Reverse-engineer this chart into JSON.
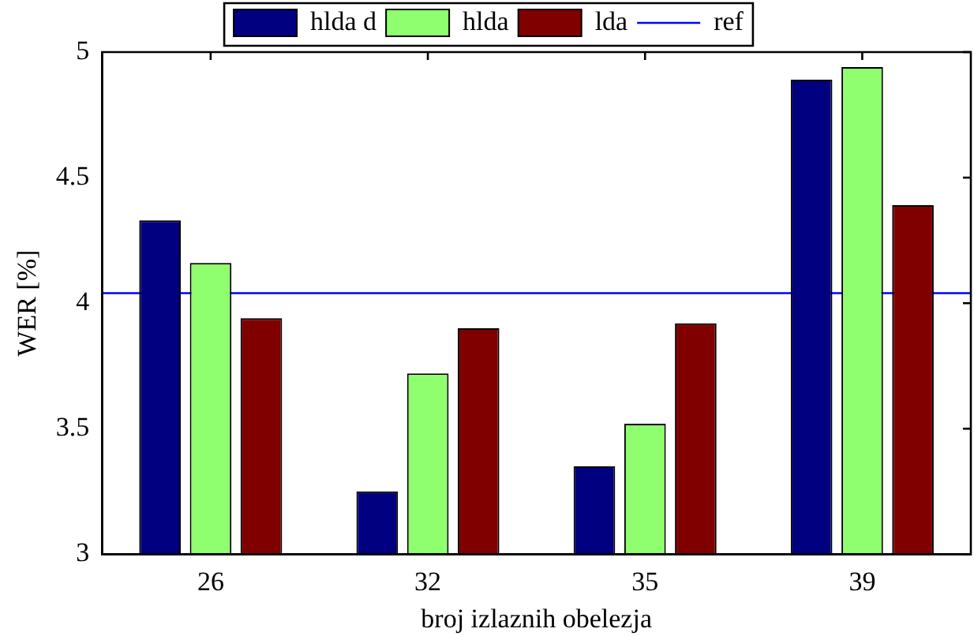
{
  "chart_data": {
    "type": "bar",
    "xlabel": "broj izlaznih obelezja",
    "ylabel": "WER [%]",
    "categories": [
      "26",
      "32",
      "35",
      "39"
    ],
    "series": [
      {
        "name": "hlda d",
        "color": "#000080",
        "values": [
          4.33,
          3.25,
          3.35,
          4.89
        ]
      },
      {
        "name": "hlda",
        "color": "#8fff6f",
        "values": [
          4.16,
          3.72,
          3.52,
          4.94
        ]
      },
      {
        "name": "lda",
        "color": "#800000",
        "values": [
          3.94,
          3.9,
          3.92,
          4.39
        ]
      }
    ],
    "ref_lines": [
      {
        "axis": "y",
        "value": 4.04,
        "label": "ref",
        "color": "#0000ff"
      }
    ],
    "ylim": [
      3,
      5
    ],
    "yticks": [
      3,
      3.5,
      4,
      4.5,
      5
    ],
    "grid": false,
    "legend": "top"
  }
}
